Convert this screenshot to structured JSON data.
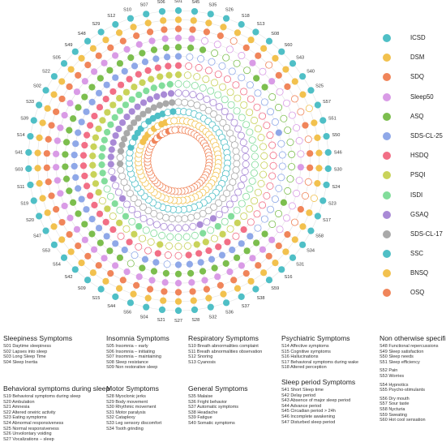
{
  "chart_data": {
    "type": "radial-dot-matrix",
    "items_order": [
      "S01",
      "S45",
      "S35",
      "S26",
      "S18",
      "S13",
      "S08",
      "S60",
      "S43",
      "S40",
      "S25",
      "S57",
      "S51",
      "S50",
      "S46",
      "S30",
      "S24",
      "S23",
      "S17",
      "S58",
      "S34",
      "S31",
      "S16",
      "S59",
      "S38",
      "S37",
      "S36",
      "S32",
      "S28",
      "S27",
      "S21",
      "S04",
      "S56",
      "S44",
      "S15",
      "S09",
      "S42",
      "S54",
      "S53",
      "S47",
      "S20",
      "S19",
      "S11",
      "S03",
      "S41",
      "S14",
      "S39",
      "S33",
      "S02",
      "S22",
      "S05",
      "S49",
      "S48",
      "S29",
      "S12",
      "S10",
      "S07",
      "S06"
    ],
    "instruments": [
      {
        "name": "ICSD",
        "color": "#4fbfc6"
      },
      {
        "name": "DSM",
        "color": "#f2c14e"
      },
      {
        "name": "SDQ",
        "color": "#f0855a"
      },
      {
        "name": "Sleep50",
        "color": "#d99be6"
      },
      {
        "name": "ASQ",
        "color": "#7cbe4e"
      },
      {
        "name": "SDS-CL-25",
        "color": "#8fa8e8"
      },
      {
        "name": "HSDQ",
        "color": "#f26f86"
      },
      {
        "name": "PSQI",
        "color": "#c9d35a"
      },
      {
        "name": "ISDI",
        "color": "#82dd9b"
      },
      {
        "name": "GSAQ",
        "color": "#a98ad6"
      },
      {
        "name": "SDS-CL-17",
        "color": "#a9a9a9"
      },
      {
        "name": "SSC",
        "color": "#4fbfc6"
      },
      {
        "name": "BNSQ",
        "color": "#f2c14e"
      },
      {
        "name": "OSQ",
        "color": "#f0855a"
      }
    ],
    "coverage": {
      "S01": [
        "ICSD",
        "DSM",
        "SDQ",
        "Sleep50",
        "ASQ",
        "SDS-CL-25",
        "HSDQ",
        "PSQI"
      ],
      "S45": [
        "ICSD",
        "DSM",
        "SDQ",
        "Sleep50",
        "ASQ"
      ],
      "S35": [
        "ICSD",
        "DSM",
        "SDQ",
        "ASQ"
      ],
      "S26": [
        "ICSD",
        "DSM",
        "SDQ"
      ],
      "S18": [
        "ICSD",
        "DSM"
      ],
      "S13": [
        "ICSD",
        "DSM",
        "SDQ"
      ],
      "S08": [
        "ICSD",
        "DSM",
        "SDQ",
        "Sleep50"
      ],
      "S60": [
        "ICSD",
        "DSM",
        "ASQ"
      ],
      "S43": [
        "ICSD",
        "DSM",
        "SDQ",
        "Sleep50",
        "ASQ"
      ],
      "S40": [
        "ICSD",
        "DSM",
        "SDQ"
      ],
      "S25": [
        "ICSD",
        "DSM"
      ],
      "S57": [
        "ICSD"
      ],
      "S51": [
        "ICSD",
        "DSM",
        "SDQ",
        "SDS-CL-25"
      ],
      "S50": [
        "ICSD",
        "DSM"
      ],
      "S46": [
        "ICSD",
        "DSM",
        "SDQ"
      ],
      "S30": [
        "ICSD",
        "DSM",
        "SDQ",
        "Sleep50"
      ],
      "S24": [
        "ICSD",
        "DSM"
      ],
      "S23": [
        "ICSD"
      ],
      "S17": [
        "ICSD",
        "DSM",
        "SDQ",
        "ASQ"
      ],
      "S58": [
        "ICSD",
        "DSM"
      ],
      "S34": [
        "ICSD",
        "DSM",
        "SDQ"
      ],
      "S31": [
        "ICSD",
        "DSM",
        "SDQ",
        "Sleep50",
        "ASQ"
      ],
      "S16": [
        "ICSD",
        "DSM",
        "SDQ",
        "Sleep50",
        "ASQ",
        "SDS-CL-25",
        "HSDQ",
        "PSQI",
        "ISDI"
      ],
      "S59": [
        "ICSD",
        "DSM",
        "SDQ",
        "Sleep50",
        "ASQ",
        "SDS-CL-25"
      ],
      "S38": [
        "ICSD",
        "DSM",
        "SDQ",
        "Sleep50",
        "ASQ",
        "SDS-CL-25",
        "HSDQ",
        "PSQI",
        "ISDI",
        "GSAQ"
      ],
      "S37": [
        "ICSD",
        "DSM",
        "SDQ",
        "Sleep50",
        "ASQ",
        "SDS-CL-25",
        "HSDQ"
      ],
      "S36": [
        "ICSD",
        "DSM",
        "SDQ",
        "Sleep50",
        "ASQ",
        "SDS-CL-25",
        "HSDQ",
        "PSQI",
        "ISDI",
        "GSAQ"
      ],
      "S32": [
        "ICSD",
        "DSM",
        "SDQ",
        "Sleep50",
        "ASQ",
        "SDS-CL-25",
        "HSDQ",
        "PSQI"
      ],
      "S28": [
        "ICSD",
        "DSM",
        "SDQ",
        "Sleep50",
        "ASQ",
        "SDS-CL-25",
        "HSDQ"
      ],
      "S27": [
        "ICSD",
        "DSM",
        "SDQ",
        "Sleep50",
        "ASQ",
        "SDS-CL-25"
      ],
      "S21": [
        "ICSD",
        "DSM",
        "SDQ",
        "Sleep50",
        "ASQ"
      ],
      "S04": [
        "ICSD",
        "DSM",
        "SDQ",
        "Sleep50",
        "ASQ",
        "SDS-CL-25",
        "HSDQ",
        "PSQI"
      ],
      "S56": [
        "ICSD",
        "DSM",
        "SDQ",
        "Sleep50",
        "ASQ",
        "SDS-CL-25"
      ],
      "S44": [
        "ICSD",
        "DSM",
        "SDQ",
        "Sleep50"
      ],
      "S15": [
        "ICSD",
        "DSM",
        "SDQ",
        "Sleep50",
        "ASQ",
        "SDS-CL-25",
        "HSDQ",
        "PSQI",
        "ISDI"
      ],
      "S09": [
        "ICSD",
        "DSM",
        "SDQ",
        "Sleep50",
        "ASQ",
        "SDS-CL-25"
      ],
      "S42": [
        "ICSD",
        "DSM",
        "SDQ",
        "Sleep50",
        "ASQ",
        "SDS-CL-25",
        "HSDQ",
        "PSQI",
        "ISDI"
      ],
      "S54": [
        "ICSD",
        "DSM",
        "SDQ",
        "Sleep50",
        "ASQ",
        "SDS-CL-25",
        "HSDQ"
      ],
      "S53": [
        "ICSD",
        "DSM",
        "SDQ",
        "Sleep50",
        "ASQ",
        "SDS-CL-25",
        "HSDQ",
        "PSQI",
        "ISDI",
        "GSAQ"
      ],
      "S47": [
        "ICSD",
        "DSM",
        "SDQ",
        "Sleep50",
        "ASQ",
        "SDS-CL-25",
        "HSDQ"
      ],
      "S20": [
        "ICSD",
        "DSM",
        "SDQ",
        "Sleep50",
        "ASQ",
        "SDS-CL-25",
        "HSDQ",
        "PSQI"
      ],
      "S19": [
        "ICSD",
        "DSM",
        "SDQ",
        "Sleep50",
        "ASQ",
        "SDS-CL-25",
        "HSDQ",
        "PSQI",
        "ISDI",
        "GSAQ"
      ],
      "S11": [
        "ICSD",
        "DSM",
        "SDQ",
        "Sleep50",
        "ASQ",
        "SDS-CL-25",
        "HSDQ",
        "PSQI",
        "ISDI"
      ],
      "S03": [
        "ICSD",
        "DSM",
        "SDQ",
        "Sleep50",
        "ASQ",
        "SDS-CL-25",
        "HSDQ",
        "PSQI",
        "ISDI",
        "GSAQ",
        "SDS-CL-17"
      ],
      "S41": [
        "ICSD",
        "DSM",
        "SDQ",
        "Sleep50",
        "ASQ",
        "SDS-CL-25",
        "HSDQ",
        "PSQI",
        "ISDI",
        "GSAQ"
      ],
      "S14": [
        "ICSD",
        "DSM",
        "SDQ",
        "Sleep50",
        "ASQ",
        "SDS-CL-25",
        "HSDQ",
        "PSQI",
        "ISDI",
        "GSAQ",
        "SDS-CL-17"
      ],
      "S39": [
        "ICSD",
        "DSM",
        "SDQ",
        "Sleep50",
        "ASQ",
        "SDS-CL-25",
        "HSDQ",
        "PSQI",
        "ISDI",
        "GSAQ",
        "SDS-CL-17",
        "SSC"
      ],
      "S33": [
        "ICSD",
        "DSM",
        "SDQ",
        "Sleep50",
        "ASQ",
        "SDS-CL-25",
        "HSDQ",
        "PSQI",
        "ISDI",
        "GSAQ",
        "SDS-CL-17"
      ],
      "S02": [
        "ICSD",
        "DSM",
        "SDQ",
        "Sleep50",
        "ASQ",
        "SDS-CL-25",
        "HSDQ",
        "PSQI",
        "ISDI",
        "GSAQ",
        "SDS-CL-17",
        "SSC",
        "BNSQ"
      ],
      "S22": [
        "ICSD",
        "DSM",
        "SDQ",
        "Sleep50",
        "ASQ",
        "SDS-CL-25",
        "HSDQ",
        "PSQI",
        "ISDI",
        "GSAQ",
        "SDS-CL-17",
        "SSC",
        "BNSQ"
      ],
      "S05": [
        "ICSD",
        "DSM",
        "SDQ",
        "Sleep50",
        "ASQ",
        "SDS-CL-25",
        "HSDQ",
        "PSQI",
        "ISDI",
        "GSAQ",
        "SDS-CL-17",
        "SSC",
        "BNSQ",
        "OSQ"
      ],
      "S49": [
        "ICSD",
        "DSM",
        "SDQ",
        "Sleep50",
        "ASQ",
        "SDS-CL-25",
        "HSDQ",
        "PSQI",
        "ISDI",
        "GSAQ",
        "SDS-CL-17"
      ],
      "S48": [
        "ICSD",
        "DSM",
        "SDQ",
        "Sleep50",
        "ASQ",
        "SDS-CL-25",
        "HSDQ",
        "PSQI",
        "ISDI",
        "GSAQ",
        "SDS-CL-17",
        "SSC",
        "BNSQ",
        "OSQ"
      ],
      "S29": [
        "ICSD",
        "DSM",
        "SDQ",
        "Sleep50",
        "ASQ",
        "SDS-CL-25",
        "HSDQ",
        "PSQI",
        "ISDI",
        "GSAQ",
        "SDS-CL-17",
        "SSC"
      ],
      "S12": [
        "ICSD",
        "DSM",
        "SDQ",
        "Sleep50",
        "ASQ",
        "SDS-CL-25",
        "HSDQ",
        "PSQI",
        "ISDI",
        "GSAQ",
        "SDS-CL-17",
        "SSC",
        "BNSQ"
      ],
      "S10": [
        "ICSD",
        "DSM",
        "SDQ",
        "Sleep50",
        "ASQ",
        "SDS-CL-25",
        "HSDQ",
        "PSQI",
        "ISDI",
        "GSAQ",
        "SDS-CL-17",
        "SSC",
        "BNSQ",
        "OSQ"
      ],
      "S07": [
        "ICSD",
        "DSM",
        "SDQ",
        "Sleep50",
        "ASQ",
        "SDS-CL-25",
        "HSDQ",
        "PSQI",
        "ISDI",
        "GSAQ",
        "SDS-CL-17"
      ],
      "S06": [
        "ICSD",
        "DSM",
        "SDQ",
        "Sleep50",
        "ASQ",
        "SDS-CL-25",
        "HSDQ",
        "PSQI",
        "ISDI",
        "GSAQ",
        "SDS-CL-17",
        "SSC"
      ]
    },
    "grid": true
  },
  "symptom_groups": [
    {
      "title": "Sleepiness Symptoms",
      "items": [
        "S01 Daytime sleepiness",
        "S02 Lapses into sleep",
        "S03 Long Sleep Time",
        "S04 Sleep Inertia"
      ]
    },
    {
      "title": "Insomnia Symptoms",
      "items": [
        "S05 Insomnia – early",
        "S06 Insomnia – initiating",
        "S07 Insomnia – maintaining",
        "S08 Sleep resistance",
        "S09 Non restorative sleep"
      ]
    },
    {
      "title": "Respiratory Symptoms",
      "items": [
        "S10 Breath abnormalities complaint",
        "S11 Breath abnormalities observation",
        "S12 Snoring",
        "S13 Cyanosis"
      ]
    },
    {
      "title": "Psychiatric Symptoms",
      "items": [
        "S14 Affective symptoms",
        "S15 Cognitive symptoms",
        "S16 Hallucinations",
        "S17 Behavioral symptoms during wake",
        "S18 Altered perception"
      ]
    },
    {
      "title": "Non otherwise specified",
      "items": [
        "S48 Functional repercussions",
        "S49 Sleep satisfaction",
        "S50 Sleep needs",
        "S51 Sleep efficiency",
        "",
        "S52 Pain",
        "S53 Worries",
        "",
        "S54 Hypnotics",
        "S55 Psycho-stimulants",
        "",
        "S56 Dry mouth",
        "S57 Sour taste",
        "S58 Nycturia",
        "S59 Sweating",
        "S60 Hot cool sensation"
      ]
    },
    {
      "title": "Behavioral symptoms during sleep",
      "items": [
        "S19 Behavioral symptoms during sleep",
        "S20 Ambulation",
        "S21 Amnesia",
        "S22 Altered oneiric activity",
        "S23 Eating symptoms",
        "S24 Abnormal responsiveness",
        "S25 Normal responsiveness",
        "S26 Unvolontary voiding",
        "S27 Vocalizations – sleep"
      ]
    },
    {
      "title": "Motor Symptoms",
      "items": [
        "S28 Myoclonic jerks",
        "S29 Body movement",
        "S30 Rhythmic movement",
        "S31 Motor paralysis",
        "S32 Cataplexy",
        "S33 Leg sensory discomfort",
        "S34 Tooth grinding"
      ]
    },
    {
      "title": "General Symptoms",
      "items": [
        "S35 Malaise",
        "S36 Fright behavior",
        "S37 Automatic symptoms",
        "S38 Headache",
        "S39 Fatigue",
        "S40 Somatic symptoms"
      ]
    },
    {
      "title": "Sleep period Symptoms",
      "items": [
        "S41 Short Sleep time",
        "S42 Delay period",
        "S43 Absence of major sleep period",
        "S44 Advance period",
        "S45 Circadian period > 24h",
        "S46 Incomplete awakening",
        "S47 Disturbed sleep period"
      ]
    }
  ]
}
